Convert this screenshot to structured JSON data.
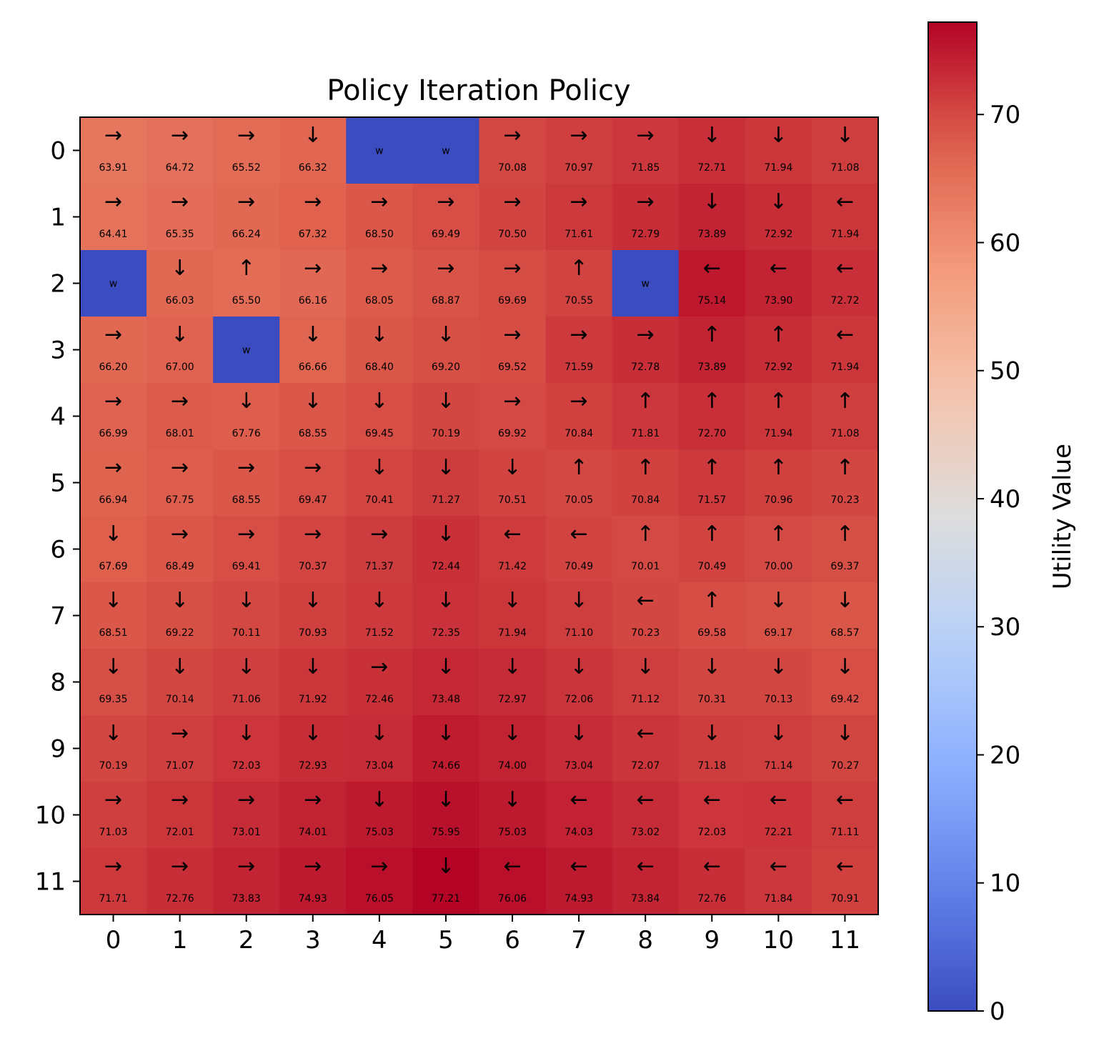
{
  "chart_data": {
    "type": "heatmap",
    "title": "Policy Iteration Policy",
    "x_ticks": [
      "0",
      "1",
      "2",
      "3",
      "4",
      "5",
      "6",
      "7",
      "8",
      "9",
      "10",
      "11"
    ],
    "y_ticks": [
      "0",
      "1",
      "2",
      "3",
      "4",
      "5",
      "6",
      "7",
      "8",
      "9",
      "10",
      "11"
    ],
    "colormap": "coolwarm",
    "colorbar": {
      "label": "Utility Value",
      "range": [
        0,
        77.21
      ],
      "ticks": [
        "0",
        "10",
        "20",
        "30",
        "40",
        "50",
        "60",
        "70"
      ],
      "tick_values": [
        0,
        10,
        20,
        30,
        40,
        50,
        60,
        70
      ]
    },
    "wall_label": "w",
    "arrows": [
      [
        "→",
        "→",
        "→",
        "↓",
        "",
        "",
        "→",
        "→",
        "→",
        "↓",
        "↓",
        "↓"
      ],
      [
        "→",
        "→",
        "→",
        "→",
        "→",
        "→",
        "→",
        "→",
        "→",
        "↓",
        "↓",
        "←"
      ],
      [
        "",
        "↓",
        "↑",
        "→",
        "→",
        "→",
        "→",
        "↑",
        "",
        "←",
        "←",
        "←"
      ],
      [
        "→",
        "↓",
        "",
        "↓",
        "↓",
        "↓",
        "→",
        "→",
        "→",
        "↑",
        "↑",
        "←"
      ],
      [
        "→",
        "→",
        "↓",
        "↓",
        "↓",
        "↓",
        "→",
        "→",
        "↑",
        "↑",
        "↑",
        "↑"
      ],
      [
        "→",
        "→",
        "→",
        "→",
        "↓",
        "↓",
        "↓",
        "↑",
        "↑",
        "↑",
        "↑",
        "↑"
      ],
      [
        "↓",
        "→",
        "→",
        "→",
        "→",
        "↓",
        "←",
        "←",
        "↑",
        "↑",
        "↑",
        "↑"
      ],
      [
        "↓",
        "↓",
        "↓",
        "↓",
        "↓",
        "↓",
        "↓",
        "↓",
        "←",
        "↑",
        "↓",
        "↓"
      ],
      [
        "↓",
        "↓",
        "↓",
        "↓",
        "→",
        "↓",
        "↓",
        "↓",
        "↓",
        "↓",
        "↓",
        "↓"
      ],
      [
        "↓",
        "→",
        "↓",
        "↓",
        "↓",
        "↓",
        "↓",
        "↓",
        "←",
        "↓",
        "↓",
        "↓"
      ],
      [
        "→",
        "→",
        "→",
        "→",
        "↓",
        "↓",
        "↓",
        "←",
        "←",
        "←",
        "←",
        "←"
      ],
      [
        "→",
        "→",
        "→",
        "→",
        "→",
        "↓",
        "←",
        "←",
        "←",
        "←",
        "←",
        "←"
      ]
    ],
    "values": [
      [
        "63.91",
        "64.72",
        "65.52",
        "66.32",
        "",
        "",
        "70.08",
        "70.97",
        "71.85",
        "72.71",
        "71.94",
        "71.08"
      ],
      [
        "64.41",
        "65.35",
        "66.24",
        "67.32",
        "68.50",
        "69.49",
        "70.50",
        "71.61",
        "72.79",
        "73.89",
        "72.92",
        "71.94"
      ],
      [
        "",
        "66.03",
        "65.50",
        "66.16",
        "68.05",
        "68.87",
        "69.69",
        "70.55",
        "",
        "75.14",
        "73.90",
        "72.72"
      ],
      [
        "66.20",
        "67.00",
        "",
        "66.66",
        "68.40",
        "69.20",
        "69.52",
        "71.59",
        "72.78",
        "73.89",
        "72.92",
        "71.94"
      ],
      [
        "66.99",
        "68.01",
        "67.76",
        "68.55",
        "69.45",
        "70.19",
        "69.92",
        "70.84",
        "71.81",
        "72.70",
        "71.94",
        "71.08"
      ],
      [
        "66.94",
        "67.75",
        "68.55",
        "69.47",
        "70.41",
        "71.27",
        "70.51",
        "70.05",
        "70.84",
        "71.57",
        "70.96",
        "70.23"
      ],
      [
        "67.69",
        "68.49",
        "69.41",
        "70.37",
        "71.37",
        "72.44",
        "71.42",
        "70.49",
        "70.01",
        "70.49",
        "70.00",
        "69.37"
      ],
      [
        "68.51",
        "69.22",
        "70.11",
        "70.93",
        "71.52",
        "72.35",
        "71.94",
        "71.10",
        "70.23",
        "69.58",
        "69.17",
        "68.57"
      ],
      [
        "69.35",
        "70.14",
        "71.06",
        "71.92",
        "72.46",
        "73.48",
        "72.97",
        "72.06",
        "71.12",
        "70.31",
        "70.13",
        "69.42"
      ],
      [
        "70.19",
        "71.07",
        "72.03",
        "72.93",
        "73.04",
        "74.66",
        "74.00",
        "73.04",
        "72.07",
        "71.18",
        "71.14",
        "70.27"
      ],
      [
        "71.03",
        "72.01",
        "73.01",
        "74.01",
        "75.03",
        "75.95",
        "75.03",
        "74.03",
        "73.02",
        "72.03",
        "72.21",
        "71.11"
      ],
      [
        "71.71",
        "72.76",
        "73.83",
        "74.93",
        "76.05",
        "77.21",
        "76.06",
        "74.93",
        "73.84",
        "72.76",
        "71.84",
        "70.91"
      ]
    ]
  }
}
